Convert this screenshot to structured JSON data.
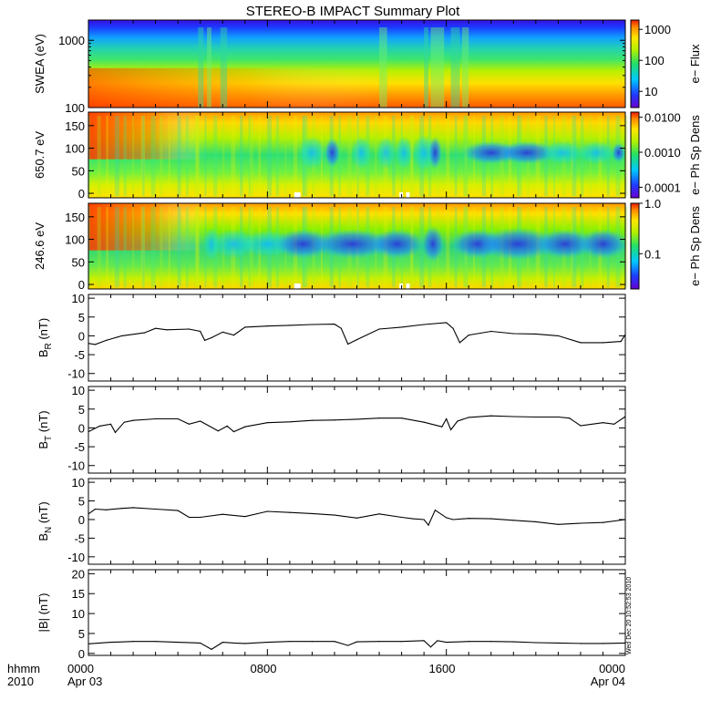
{
  "title": "STEREO-B IMPACT Summary Plot",
  "x_axis": {
    "row1_labels": [
      "hhmm",
      "0000",
      "0800",
      "1600",
      "0000"
    ],
    "row2_labels": [
      "2010",
      "Apr 03",
      "Apr 04"
    ]
  },
  "timestamp": "Wed Dec 20 10:52:53 2010",
  "chart_data": [
    {
      "type": "heatmap",
      "name": "swea",
      "ylabel": "SWEA (eV)",
      "yscale": "log",
      "ylim": [
        100,
        2000
      ],
      "yticks": [
        {
          "v": 1000,
          "label": "1000"
        },
        {
          "v": 100,
          "label": "100"
        }
      ],
      "colorbar": {
        "label": "e− Flux",
        "scale": "log",
        "range": [
          3,
          2000
        ],
        "ticks": [
          {
            "v": 1000,
            "label": "1000"
          },
          {
            "v": 100,
            "label": "100"
          },
          {
            "v": 10,
            "label": "10"
          }
        ]
      }
    },
    {
      "type": "heatmap",
      "name": "pad650",
      "ylabel": "650.7 eV",
      "ylim": [
        -10,
        180
      ],
      "yticks": [
        {
          "v": 150,
          "label": "150"
        },
        {
          "v": 100,
          "label": "100"
        },
        {
          "v": 50,
          "label": "50"
        },
        {
          "v": 0,
          "label": "0"
        }
      ],
      "colorbar": {
        "label": "e− Ph Sp Dens",
        "scale": "log",
        "range": [
          5e-05,
          0.014
        ],
        "ticks": [
          {
            "v": 0.01,
            "label": "0.0100"
          },
          {
            "v": 0.001,
            "label": "0.0010"
          },
          {
            "v": 0.0001,
            "label": "0.0001"
          }
        ]
      }
    },
    {
      "type": "heatmap",
      "name": "pad246",
      "ylabel": "246.6 eV",
      "ylim": [
        -10,
        180
      ],
      "yticks": [
        {
          "v": 150,
          "label": "150"
        },
        {
          "v": 100,
          "label": "100"
        },
        {
          "v": 50,
          "label": "50"
        },
        {
          "v": 0,
          "label": "0"
        }
      ],
      "colorbar": {
        "label": "e− Ph Sp Dens",
        "scale": "log",
        "range": [
          0.02,
          1.0
        ],
        "ticks": [
          {
            "v": 1.0,
            "label": "1.0"
          },
          {
            "v": 0.1,
            "label": "0.1"
          }
        ]
      }
    },
    {
      "type": "line",
      "name": "br",
      "ylabel": "B",
      "ysub": "R",
      "yunit": " (nT)",
      "ylim": [
        -12,
        11
      ],
      "yticks": [
        10,
        5,
        0,
        -5,
        -10
      ],
      "x_hours": [
        0,
        0.3,
        0.8,
        1.5,
        2.5,
        3.0,
        3.5,
        4.5,
        5.0,
        5.2,
        5.5,
        6.0,
        6.5,
        7.0,
        8.0,
        9.0,
        10.0,
        11.0,
        11.3,
        11.6,
        12.0,
        13.0,
        14.0,
        15.0,
        16.0,
        16.3,
        16.6,
        17.0,
        18.0,
        19.0,
        20.0,
        21.0,
        22.0,
        23.0,
        23.8,
        24.0
      ],
      "y": [
        -2.0,
        -2.3,
        -1.2,
        0.0,
        0.8,
        2.0,
        1.6,
        1.8,
        1.2,
        -1.2,
        -0.5,
        1.0,
        0.2,
        2.3,
        2.6,
        2.8,
        3.0,
        3.1,
        2.0,
        -2.2,
        -1.0,
        1.8,
        2.3,
        3.0,
        3.5,
        2.0,
        -1.8,
        0.2,
        1.2,
        0.6,
        0.5,
        0.0,
        -1.8,
        -1.8,
        -1.5,
        0.3
      ]
    },
    {
      "type": "line",
      "name": "bt",
      "ylabel": "B",
      "ysub": "T",
      "yunit": " (nT)",
      "ylim": [
        -12,
        11
      ],
      "yticks": [
        10,
        5,
        0,
        -5,
        -10
      ],
      "x_hours": [
        0,
        0.5,
        1.0,
        1.2,
        1.6,
        2.0,
        3.0,
        4.0,
        4.5,
        5.0,
        5.8,
        6.2,
        6.5,
        7.0,
        8.0,
        9.0,
        10.0,
        11.0,
        12.0,
        13.0,
        14.0,
        15.0,
        15.8,
        16.0,
        16.2,
        16.5,
        17.0,
        18.0,
        19.0,
        20.0,
        21.0,
        21.5,
        22.0,
        23.0,
        23.5,
        24.0
      ],
      "y": [
        -1.0,
        0.5,
        1.0,
        -1.2,
        1.5,
        2.0,
        2.4,
        2.4,
        1.0,
        1.8,
        -0.8,
        0.5,
        -1.0,
        0.3,
        1.4,
        1.6,
        2.0,
        2.1,
        2.3,
        2.6,
        2.6,
        1.5,
        0.3,
        2.4,
        -0.5,
        1.8,
        2.8,
        3.2,
        3.0,
        2.9,
        2.9,
        2.6,
        0.6,
        1.4,
        1.0,
        3.0
      ]
    },
    {
      "type": "line",
      "name": "bn",
      "ylabel": "B",
      "ysub": "N",
      "yunit": " (nT)",
      "ylim": [
        -12,
        11
      ],
      "yticks": [
        10,
        5,
        0,
        -5,
        -10
      ],
      "x_hours": [
        0,
        0.3,
        0.8,
        1.5,
        2.0,
        3.0,
        4.0,
        4.5,
        5.0,
        6.0,
        7.0,
        8.0,
        9.0,
        10.0,
        11.0,
        12.0,
        13.0,
        14.0,
        14.5,
        15.0,
        15.2,
        15.5,
        16.0,
        16.3,
        17.0,
        18.0,
        19.0,
        20.0,
        21.0,
        22.0,
        23.0,
        24.0
      ],
      "y": [
        1.5,
        2.8,
        2.6,
        3.0,
        3.2,
        2.8,
        2.4,
        0.6,
        0.6,
        1.4,
        0.8,
        2.2,
        1.9,
        1.6,
        1.2,
        0.4,
        1.5,
        0.6,
        0.2,
        0.0,
        -1.5,
        2.5,
        0.5,
        0.0,
        0.3,
        0.2,
        -0.2,
        -0.6,
        -1.3,
        -1.0,
        -0.8,
        0.0
      ]
    },
    {
      "type": "line",
      "name": "bmag",
      "ylabel": "|B| (nT)",
      "ylim": [
        -0.5,
        21
      ],
      "yticks": [
        20,
        15,
        10,
        5,
        0
      ],
      "x_hours": [
        0,
        1.0,
        2.0,
        3.0,
        4.0,
        5.0,
        5.5,
        6.0,
        6.5,
        7.0,
        8.0,
        9.0,
        10.0,
        11.0,
        11.6,
        12.0,
        13.0,
        14.0,
        15.0,
        15.3,
        15.6,
        16.0,
        17.0,
        18.0,
        19.0,
        20.0,
        21.0,
        22.0,
        23.0,
        24.0
      ],
      "y": [
        2.4,
        2.8,
        3.0,
        3.0,
        2.8,
        2.6,
        1.0,
        2.8,
        2.6,
        2.5,
        2.8,
        3.0,
        3.0,
        3.0,
        2.0,
        2.9,
        3.0,
        3.0,
        3.2,
        1.6,
        3.2,
        2.8,
        3.0,
        3.0,
        2.9,
        2.7,
        2.6,
        2.5,
        2.5,
        2.6
      ]
    }
  ]
}
